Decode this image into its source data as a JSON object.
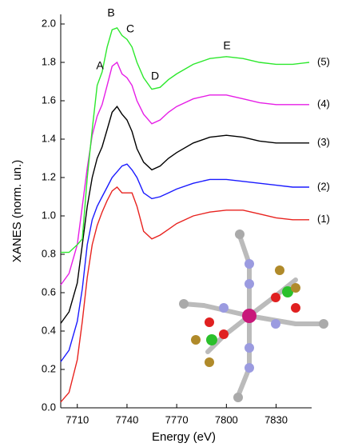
{
  "chart_data": {
    "type": "line",
    "x_label": "Energy (eV)",
    "y_label": "XANES (norm. un.)",
    "x": [
      7700,
      7705,
      7710,
      7713,
      7716,
      7719,
      7722,
      7725,
      7728,
      7731,
      7734,
      7737,
      7740,
      7743,
      7746,
      7750,
      7755,
      7760,
      7765,
      7770,
      7780,
      7790,
      7800,
      7810,
      7820,
      7830,
      7840,
      7850
    ],
    "series": [
      {
        "name": "(1)",
        "color": "#e8231f",
        "values": [
          0.03,
          0.08,
          0.25,
          0.45,
          0.68,
          0.85,
          0.95,
          1.02,
          1.08,
          1.13,
          1.15,
          1.12,
          1.12,
          1.12,
          1.05,
          0.92,
          0.88,
          0.9,
          0.93,
          0.96,
          1.0,
          1.02,
          1.03,
          1.03,
          1.01,
          0.99,
          0.98,
          0.98
        ]
      },
      {
        "name": "(2)",
        "color": "#1a1aff",
        "values": [
          0.24,
          0.3,
          0.45,
          0.62,
          0.85,
          0.98,
          1.05,
          1.1,
          1.15,
          1.2,
          1.23,
          1.26,
          1.27,
          1.24,
          1.2,
          1.12,
          1.09,
          1.1,
          1.12,
          1.14,
          1.17,
          1.19,
          1.19,
          1.18,
          1.17,
          1.16,
          1.15,
          1.15
        ]
      },
      {
        "name": "(3)",
        "color": "#000000",
        "values": [
          0.44,
          0.5,
          0.65,
          0.85,
          1.05,
          1.2,
          1.3,
          1.36,
          1.45,
          1.54,
          1.57,
          1.53,
          1.5,
          1.44,
          1.35,
          1.28,
          1.24,
          1.26,
          1.3,
          1.33,
          1.38,
          1.41,
          1.42,
          1.41,
          1.39,
          1.38,
          1.38,
          1.38
        ]
      },
      {
        "name": "(4)",
        "color": "#e61ee6",
        "values": [
          0.64,
          0.7,
          0.85,
          1.05,
          1.25,
          1.42,
          1.52,
          1.58,
          1.68,
          1.78,
          1.8,
          1.74,
          1.72,
          1.68,
          1.6,
          1.53,
          1.48,
          1.5,
          1.54,
          1.57,
          1.61,
          1.63,
          1.63,
          1.61,
          1.59,
          1.58,
          1.58,
          1.58
        ]
      },
      {
        "name": "(5)",
        "color": "#2de82d",
        "values": [
          0.81,
          0.81,
          0.85,
          0.88,
          1.2,
          1.45,
          1.68,
          1.75,
          1.88,
          1.97,
          1.98,
          1.94,
          1.92,
          1.88,
          1.8,
          1.72,
          1.66,
          1.67,
          1.71,
          1.74,
          1.79,
          1.82,
          1.83,
          1.82,
          1.8,
          1.79,
          1.79,
          1.8
        ]
      }
    ],
    "annotations": [
      "A",
      "B",
      "C",
      "D",
      "E"
    ],
    "xlim": [
      7700,
      7850
    ],
    "xticks": [
      7710,
      7740,
      7770,
      7800,
      7830
    ],
    "ylim": [
      0,
      2.0
    ],
    "yticks": [
      {
        "value": 0,
        "label": "0.0"
      },
      0.2,
      0.4,
      0.6,
      0.8,
      {
        "value": 1,
        "label": "1.0"
      },
      1.2,
      1.4,
      1.6,
      1.8,
      {
        "value": 2,
        "label": "2.0"
      }
    ],
    "grid": false
  }
}
